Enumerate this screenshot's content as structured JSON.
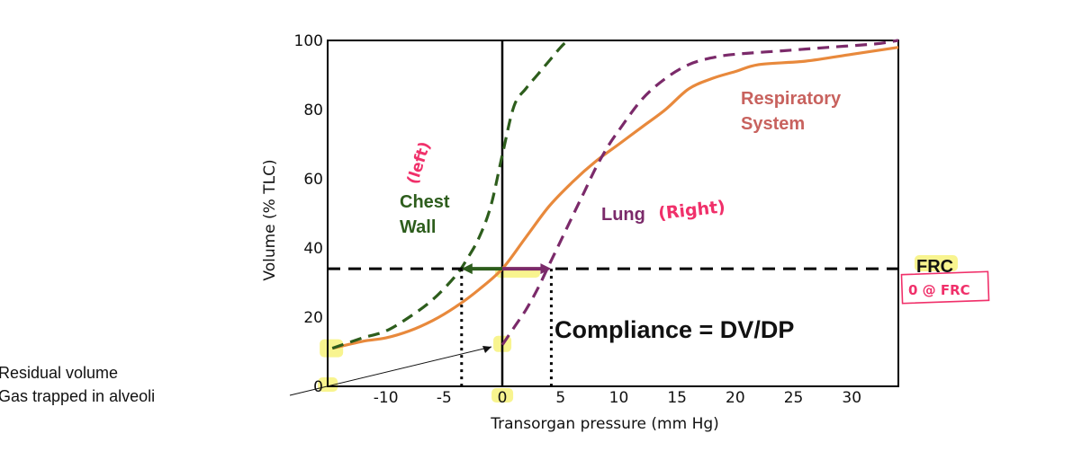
{
  "chart_data": {
    "type": "line",
    "xlabel": "Transorgan pressure (mm Hg)",
    "ylabel": "Volume (% TLC)",
    "xlim": [
      -15,
      34
    ],
    "ylim": [
      0,
      100
    ],
    "x_ticks": [
      "-10",
      "-5",
      "0",
      "5",
      "10",
      "15",
      "20",
      "25",
      "30"
    ],
    "y_ticks": [
      "0",
      "20",
      "40",
      "60",
      "80",
      "100"
    ],
    "series": [
      {
        "name": "Respiratory System",
        "color": "#e8893c",
        "style": "solid",
        "x": [
          -14.6,
          -12,
          -10,
          -8,
          -6,
          -4,
          -2,
          0,
          2,
          4,
          6,
          8,
          10,
          12,
          14,
          16,
          18,
          20,
          22,
          26,
          30,
          34
        ],
        "y": [
          11,
          13,
          14,
          16,
          19,
          23,
          28,
          34,
          43,
          52,
          59,
          65,
          70,
          75,
          80,
          86,
          89,
          91,
          93,
          94,
          96,
          98
        ]
      },
      {
        "name": "Chest Wall",
        "color": "#2d5d1c",
        "style": "dashed",
        "x": [
          -14.6,
          -12,
          -10,
          -8,
          -6,
          -4,
          -3,
          -2,
          -1,
          0,
          1,
          2,
          3,
          4,
          5,
          5.6
        ],
        "y": [
          11,
          14,
          16,
          20,
          25,
          32,
          37,
          43,
          52,
          67,
          81,
          86,
          90,
          94,
          98,
          100
        ]
      },
      {
        "name": "Lung",
        "color": "#7b2a6a",
        "style": "dashed",
        "x": [
          0,
          1,
          2,
          3,
          4,
          5,
          6,
          7,
          8,
          9,
          10,
          12,
          14,
          16,
          18,
          20,
          24,
          28,
          32,
          34
        ],
        "y": [
          12,
          17,
          22,
          28,
          35,
          42,
          49,
          56,
          63,
          69,
          74,
          83,
          89,
          93,
          95,
          96,
          97,
          98,
          99,
          100
        ]
      }
    ],
    "frc": {
      "y": 34,
      "chest_wall_x": -3.5,
      "lung_x": 4.2,
      "label": "FRC"
    },
    "annotations": {
      "chest_wall_label": [
        "Chest",
        "Wall"
      ],
      "lung_label": "Lung",
      "lung_handwritten": "(Right)",
      "chest_wall_handwritten": "(left)",
      "respiratory_label": [
        "Respiratory",
        "System"
      ],
      "frc_handwritten": "0 @ FRC",
      "compliance": "Compliance = DV/DP",
      "residual_lines": [
        "Residual volume",
        "Gas trapped in alveoli"
      ]
    },
    "grid": false,
    "legend": "none"
  }
}
